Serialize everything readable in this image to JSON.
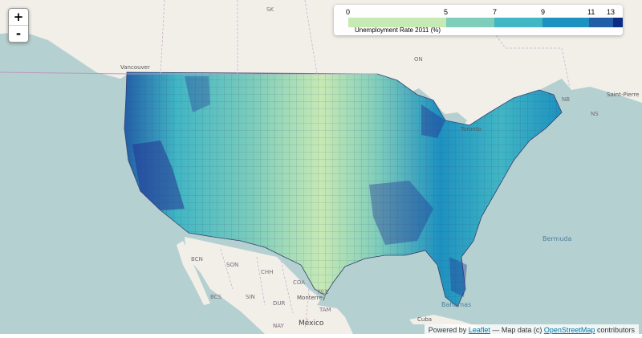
{
  "zoom": {
    "in_label": "+",
    "out_label": "-"
  },
  "legend": {
    "title": "Unemployment Rate 2011 (%)",
    "ticks": [
      "0",
      "5",
      "7",
      "9",
      "11",
      "13"
    ],
    "colors": [
      "#c7e9b4",
      "#7fcdbb",
      "#41b6c4",
      "#1d91c0",
      "#225ea8",
      "#0c2c84"
    ]
  },
  "attribution": {
    "prefix": "Powered by",
    "leaflet": "Leaflet",
    "middle": "— Map data (c)",
    "osm": "OpenStreetMap",
    "suffix": "contributors"
  },
  "labels": {
    "sk": "SK",
    "on": "ON",
    "vancouver": "Vancouver",
    "toronto": "Toronto",
    "nb": "NB",
    "ns": "NS",
    "saint_pierre": "Saint-Pierre",
    "bermuda": "Bermuda",
    "bahamas": "Bahamas",
    "cuba": "Cuba",
    "mexico": "México",
    "monterrey": "Monterrey",
    "bcn": "BCN",
    "son": "SON",
    "chh": "CHH",
    "coa": "COA",
    "nle": "NLE",
    "tam": "TAM",
    "bcs": "BCS",
    "dur": "DUR",
    "sin": "SIN",
    "nay": "NAY"
  }
}
